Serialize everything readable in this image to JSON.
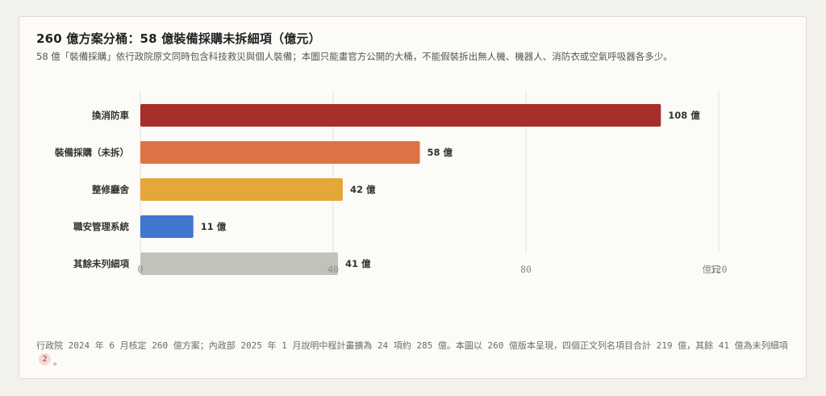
{
  "header": {
    "title": "260 億方案分桶：58 億裝備採購未拆細項（億元）",
    "subtitle": "58 億「裝備採購」依行政院原文同時包含科技救災與個人裝備；本圖只能畫官方公開的大桶，不能假裝拆出無人機、機器人、消防衣或空氣呼吸器各多少。"
  },
  "chart_data": {
    "type": "bar",
    "orientation": "horizontal",
    "title": "260 億方案分桶：58 億裝備採購未拆細項（億元）",
    "categories": [
      "換消防車",
      "裝備採購（未拆）",
      "整修廳舍",
      "職安管理系統",
      "其餘未列細項"
    ],
    "values": [
      108,
      58,
      42,
      11,
      41
    ],
    "data_labels": [
      "108 億",
      "58 億",
      "42 億",
      "11 億",
      "41 億"
    ],
    "colors": [
      "#a5302b",
      "#df7244",
      "#e4a73a",
      "#3f76d0",
      "#c2c2b8"
    ],
    "xlim": [
      0,
      120
    ],
    "x_ticks": [
      "0",
      "40",
      "80",
      "120"
    ],
    "x_unit": "億元",
    "grid": true,
    "legend": "none"
  },
  "footnote": {
    "text": "行政院 2024 年 6 月核定 260 億方案；內政部 2025 年 1 月說明中程計畫擴為 24 項約 285 億。本圖以 260 億版本呈現，四個正文列名項目合計 219 億，其餘 41 億為未列細項",
    "ref": "2",
    "tail": "。"
  }
}
